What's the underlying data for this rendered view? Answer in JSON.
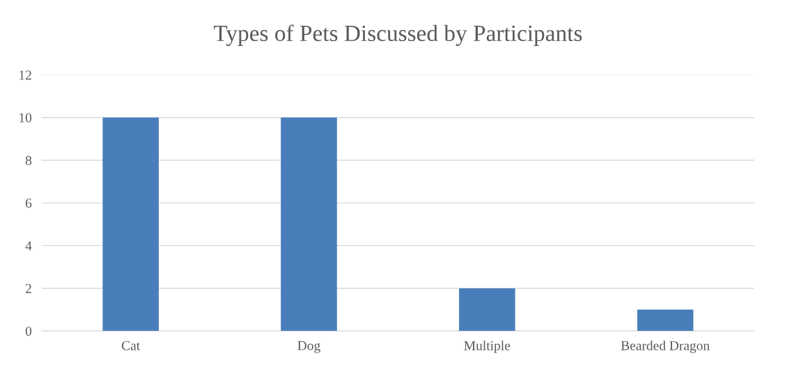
{
  "chart_data": {
    "type": "bar",
    "title": "Types of Pets Discussed by Participants",
    "categories": [
      "Cat",
      "Dog",
      "Multiple",
      "Bearded Dragon"
    ],
    "values": [
      10,
      10,
      2,
      1
    ],
    "color": "#4a7ebb",
    "ylim": [
      0,
      12
    ],
    "yticks": [
      0,
      2,
      4,
      6,
      8,
      10,
      12
    ],
    "grid": "y",
    "legend": false
  }
}
